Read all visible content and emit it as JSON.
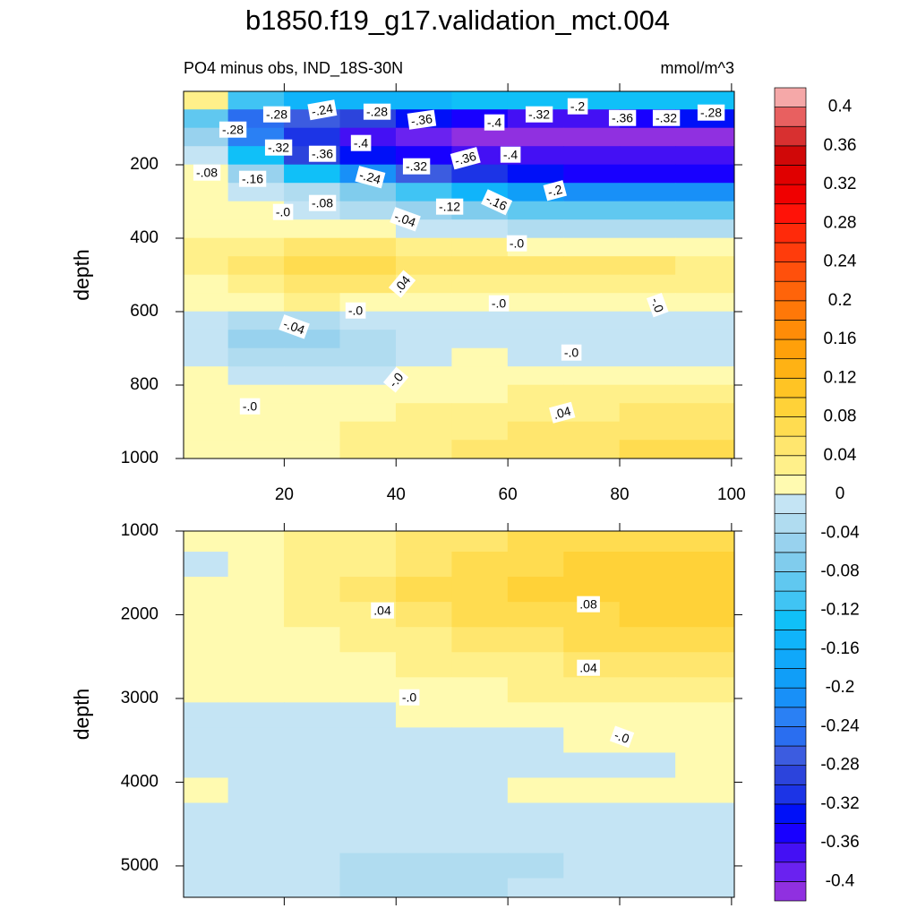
{
  "title": "b1850.f19_g17.validation_mct.004",
  "subtitle_left": "PO4 minus obs, IND_18S-30N",
  "subtitle_right": "mmol/m^3",
  "colorbar": {
    "lim": [
      -0.42,
      0.42
    ],
    "colors": [
      "#9030e0",
      "#6a22f0",
      "#4410f4",
      "#1800ff",
      "#0010f8",
      "#1c34e6",
      "#2c44dc",
      "#3c5ce0",
      "#2a6ef0",
      "#2a80f4",
      "#1890f8",
      "#109ef8",
      "#10a8fa",
      "#10b4fa",
      "#10c0f8",
      "#40c4f4",
      "#60c8f0",
      "#80cced",
      "#98d2ee",
      "#b0dcf0",
      "#c4e4f4",
      "#fffab0",
      "#fff08a",
      "#ffe66e",
      "#ffdc50",
      "#ffd238",
      "#ffc424",
      "#ffb214",
      "#ffa00a",
      "#ff8c08",
      "#ff7808",
      "#ff640a",
      "#ff500c",
      "#ff3c0c",
      "#ff2a0a",
      "#ff1208",
      "#f00000",
      "#e00000",
      "#d00808",
      "#d83030",
      "#e86060",
      "#f5a8a8"
    ],
    "ticks": [
      -0.4,
      -0.36,
      -0.32,
      -0.28,
      -0.24,
      -0.2,
      -0.16,
      -0.12,
      -0.08,
      -0.04,
      0,
      0.04,
      0.08,
      0.12,
      0.16,
      0.2,
      0.24,
      0.28,
      0.32,
      0.36,
      0.4
    ]
  },
  "chart_data": [
    {
      "type": "contour",
      "ylabel": "depth",
      "xlim": [
        2,
        100.5
      ],
      "ylim": [
        0,
        1000
      ],
      "y_reversed": true,
      "xticks": [
        20,
        40,
        60,
        80,
        100
      ],
      "xtick_labels": true,
      "yticks": [
        200,
        400,
        600,
        800,
        1000
      ],
      "x": [
        5,
        15,
        25,
        35,
        45,
        55,
        65,
        75,
        85,
        95
      ],
      "y": [
        25,
        75,
        125,
        175,
        225,
        275,
        325,
        375,
        425,
        475,
        525,
        575,
        625,
        675,
        725,
        775,
        825,
        875,
        925,
        975
      ],
      "values": [
        [
          0.02,
          -0.12,
          -0.16,
          -0.16,
          -0.16,
          -0.14,
          -0.14,
          -0.14,
          -0.14,
          -0.14
        ],
        [
          -0.1,
          -0.26,
          -0.28,
          -0.3,
          -0.34,
          -0.36,
          -0.38,
          -0.38,
          -0.36,
          -0.34
        ],
        [
          -0.06,
          -0.24,
          -0.32,
          -0.38,
          -0.4,
          -0.41,
          -0.41,
          -0.41,
          -0.41,
          -0.41
        ],
        [
          -0.02,
          -0.14,
          -0.3,
          -0.34,
          -0.36,
          -0.38,
          -0.38,
          -0.38,
          -0.38,
          -0.38
        ],
        [
          0,
          -0.06,
          -0.14,
          -0.22,
          -0.28,
          -0.32,
          -0.34,
          -0.35,
          -0.35,
          -0.35
        ],
        [
          0,
          -0.02,
          -0.04,
          -0.08,
          -0.12,
          -0.16,
          -0.2,
          -0.22,
          -0.22,
          -0.22
        ],
        [
          0.01,
          0,
          -0.02,
          -0.04,
          -0.06,
          -0.08,
          -0.1,
          -0.1,
          -0.1,
          -0.1
        ],
        [
          0.01,
          0.01,
          0.01,
          0,
          -0.02,
          -0.02,
          -0.04,
          -0.04,
          -0.04,
          -0.04
        ],
        [
          0.02,
          0.03,
          0.05,
          0.05,
          0.03,
          0.02,
          0.01,
          0.01,
          0.01,
          0.01
        ],
        [
          0.02,
          0.04,
          0.06,
          0.06,
          0.04,
          0.05,
          0.04,
          0.04,
          0.04,
          0.03
        ],
        [
          0.01,
          0.03,
          0.04,
          0.04,
          0.03,
          0.03,
          0.03,
          0.03,
          0.02,
          0.02
        ],
        [
          0,
          0.01,
          0.02,
          0.01,
          0.01,
          0,
          0.01,
          0.01,
          0,
          0
        ],
        [
          -0.01,
          -0.03,
          -0.03,
          -0.02,
          -0.01,
          -0.01,
          -0.01,
          -0.01,
          -0.01,
          -0.01
        ],
        [
          -0.02,
          -0.05,
          -0.05,
          -0.04,
          -0.02,
          -0.02,
          -0.02,
          -0.02,
          -0.02,
          -0.02
        ],
        [
          -0.01,
          -0.04,
          -0.04,
          -0.03,
          -0.02,
          0,
          -0.01,
          -0.01,
          -0.01,
          -0.01
        ],
        [
          0,
          -0.02,
          -0.02,
          -0.01,
          0,
          0.01,
          0.01,
          0.01,
          0.01,
          0.01
        ],
        [
          0.01,
          0,
          0,
          0.01,
          0.01,
          0.01,
          0.02,
          0.02,
          0.03,
          0.03
        ],
        [
          0.01,
          0.01,
          0.01,
          0.01,
          0.02,
          0.02,
          0.03,
          0.03,
          0.04,
          0.04
        ],
        [
          0.01,
          0.01,
          0.01,
          0.02,
          0.02,
          0.03,
          0.04,
          0.04,
          0.05,
          0.05
        ],
        [
          0.01,
          0.01,
          0.01,
          0.02,
          0.02,
          0.04,
          0.05,
          0.05,
          0.06,
          0.06
        ]
      ],
      "contour_labels": [
        {
          "value": -0.28,
          "label": "-.28"
        },
        {
          "value": -0.24,
          "label": "-.24"
        },
        {
          "value": -0.28,
          "label": "-.28"
        },
        {
          "value": -0.36,
          "label": "-.36"
        },
        {
          "value": -0.4,
          "label": "-.4"
        },
        {
          "value": -0.32,
          "label": "-.32"
        },
        {
          "value": -0.2,
          "label": "-.2"
        },
        {
          "value": -0.36,
          "label": "-.36"
        },
        {
          "value": -0.32,
          "label": "-.32"
        },
        {
          "value": -0.28,
          "label": "-.28"
        },
        {
          "value": -0.28,
          "label": "-.28"
        },
        {
          "value": -0.32,
          "label": "-.32"
        },
        {
          "value": -0.36,
          "label": "-.36"
        },
        {
          "value": -0.4,
          "label": "-.4"
        },
        {
          "value": -0.32,
          "label": "-.32"
        },
        {
          "value": -0.36,
          "label": "-.36"
        },
        {
          "value": -0.4,
          "label": "-.4"
        },
        {
          "value": -0.08,
          "label": "-.08"
        },
        {
          "value": -0.16,
          "label": "-.16"
        },
        {
          "value": -0.24,
          "label": "-.24"
        },
        {
          "value": 0,
          "label": "-.0"
        },
        {
          "value": -0.08,
          "label": "-.08"
        },
        {
          "value": -0.04,
          "label": "-.04"
        },
        {
          "value": -0.12,
          "label": "-.12"
        },
        {
          "value": -0.16,
          "label": "-.16"
        },
        {
          "value": -0.2,
          "label": "-.2"
        },
        {
          "value": 0,
          "label": "-.0"
        },
        {
          "value": 0.04,
          "label": ".04"
        },
        {
          "value": 0,
          "label": "-.0"
        },
        {
          "value": 0,
          "label": "-.0"
        },
        {
          "value": 0,
          "label": "-.0"
        },
        {
          "value": -0.04,
          "label": "-.04"
        },
        {
          "value": 0,
          "label": "-.0"
        },
        {
          "value": 0,
          "label": "-.0"
        },
        {
          "value": 0,
          "label": "-.0"
        },
        {
          "value": 0.04,
          "label": ".04"
        }
      ]
    },
    {
      "type": "contour",
      "ylabel": "depth",
      "xlim": [
        2,
        100.5
      ],
      "ylim": [
        1000,
        5375
      ],
      "y_reversed": true,
      "xticks": [
        20,
        40,
        60,
        80,
        100
      ],
      "xtick_labels": false,
      "yticks": [
        1000,
        2000,
        3000,
        4000,
        5000
      ],
      "x": [
        5,
        15,
        25,
        35,
        45,
        55,
        65,
        75,
        85,
        95
      ],
      "y": [
        1100,
        1400,
        1700,
        2000,
        2300,
        2600,
        2900,
        3200,
        3500,
        3800,
        4100,
        4400,
        4700,
        5000,
        5300
      ],
      "values": [
        [
          0.01,
          0.01,
          0.02,
          0.03,
          0.04,
          0.05,
          0.06,
          0.07,
          0.07,
          0.07
        ],
        [
          -0.01,
          0.01,
          0.02,
          0.03,
          0.04,
          0.06,
          0.07,
          0.08,
          0.08,
          0.08
        ],
        [
          0.01,
          0.01,
          0.02,
          0.04,
          0.06,
          0.07,
          0.08,
          0.08,
          0.09,
          0.09
        ],
        [
          0.01,
          0.01,
          0.02,
          0.03,
          0.05,
          0.06,
          0.07,
          0.07,
          0.08,
          0.08
        ],
        [
          0.01,
          0.01,
          0.01,
          0.02,
          0.03,
          0.04,
          0.05,
          0.06,
          0.06,
          0.07
        ],
        [
          0.01,
          0.01,
          0.01,
          0.01,
          0.02,
          0.03,
          0.03,
          0.04,
          0.04,
          0.04
        ],
        [
          0,
          0,
          0.01,
          0.01,
          0.01,
          0.01,
          0.02,
          0.02,
          0.02,
          0.02
        ],
        [
          -0.01,
          -0.01,
          -0.01,
          -0.01,
          0,
          0,
          0.01,
          0.01,
          0.01,
          0.01
        ],
        [
          -0.01,
          -0.01,
          -0.01,
          -0.01,
          -0.01,
          -0.01,
          -0.01,
          0,
          0.01,
          0.01
        ],
        [
          -0.01,
          -0.01,
          -0.01,
          -0.01,
          -0.01,
          -0.01,
          -0.01,
          -0.01,
          -0.01,
          0
        ],
        [
          0.01,
          -0.01,
          -0.01,
          -0.01,
          -0.01,
          -0.01,
          0,
          0.01,
          0.01,
          0.01
        ],
        [
          -0.01,
          -0.01,
          -0.01,
          -0.01,
          -0.01,
          -0.01,
          -0.01,
          -0.01,
          -0.01,
          -0.01
        ],
        [
          -0.01,
          -0.01,
          -0.01,
          -0.01,
          -0.01,
          -0.01,
          -0.01,
          -0.01,
          -0.01,
          -0.01
        ],
        [
          -0.01,
          -0.01,
          -0.02,
          -0.03,
          -0.03,
          -0.03,
          -0.03,
          -0.02,
          -0.02,
          -0.02
        ],
        [
          -0.01,
          -0.01,
          -0.02,
          -0.03,
          -0.03,
          -0.03,
          -0.02,
          -0.02,
          -0.02,
          -0.02
        ]
      ],
      "contour_labels": [
        {
          "value": 0.04,
          "label": ".04"
        },
        {
          "value": 0.08,
          "label": ".08"
        },
        {
          "value": 0.04,
          "label": ".04"
        },
        {
          "value": 0,
          "label": "-.0"
        },
        {
          "value": 0,
          "label": "-.0"
        }
      ]
    }
  ]
}
